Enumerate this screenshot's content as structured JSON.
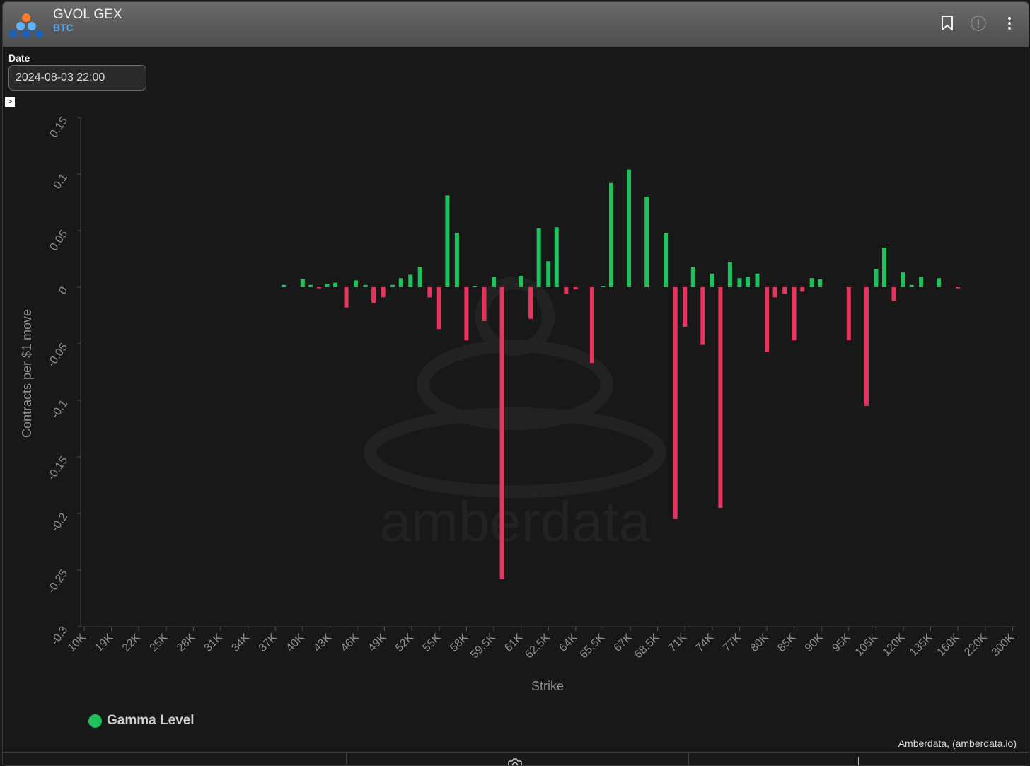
{
  "header": {
    "title": "GVOL GEX",
    "subtitle": "BTC"
  },
  "controls": {
    "date_label": "Date",
    "date_value": "2024-08-03 22:00",
    "expand_glyph": ">"
  },
  "legend": {
    "label": "Gamma Level",
    "color": "#1ec25c"
  },
  "credit": "Amberdata, (amberdata.io)",
  "watermark": "amberdata",
  "icons": [
    "bookmark-icon",
    "info-icon",
    "more-vertical-icon"
  ],
  "chart_data": {
    "type": "bar",
    "xlabel": "Strike",
    "ylabel": "Contracts per $1 move",
    "ylim": [
      -0.3,
      0.15
    ],
    "yticks": [
      0.15,
      0.1,
      0.05,
      0,
      -0.05,
      -0.1,
      -0.15,
      -0.2,
      -0.25,
      -0.3
    ],
    "ytick_labels": [
      "0.15",
      "0.1",
      "0.05",
      "0",
      "-0.05",
      "-0.1",
      "-0.15",
      "-0.2",
      "-0.25",
      "-0.3"
    ],
    "tick_labels": [
      "10K",
      "19K",
      "22K",
      "25K",
      "28K",
      "31K",
      "34K",
      "37K",
      "40K",
      "43K",
      "46K",
      "49K",
      "52K",
      "55K",
      "58K",
      "59.5K",
      "61K",
      "62.5K",
      "64K",
      "65.5K",
      "67K",
      "68.5K",
      "71K",
      "74K",
      "77K",
      "80K",
      "85K",
      "90K",
      "95K",
      "105K",
      "120K",
      "135K",
      "160K",
      "220K",
      "300K"
    ],
    "positive_color": "#1ec25c",
    "negative_color": "#e8335e",
    "bars": [
      {
        "tick": 7.3,
        "value": 0.002
      },
      {
        "tick": 8.0,
        "value": 0.007
      },
      {
        "tick": 8.3,
        "value": 0.002
      },
      {
        "tick": 8.6,
        "value": -0.001
      },
      {
        "tick": 8.9,
        "value": 0.003
      },
      {
        "tick": 9.2,
        "value": 0.004
      },
      {
        "tick": 9.6,
        "value": -0.018
      },
      {
        "tick": 9.95,
        "value": 0.006
      },
      {
        "tick": 10.3,
        "value": 0.002
      },
      {
        "tick": 10.6,
        "value": -0.014
      },
      {
        "tick": 10.95,
        "value": -0.009
      },
      {
        "tick": 11.3,
        "value": 0.002
      },
      {
        "tick": 11.6,
        "value": 0.008
      },
      {
        "tick": 11.95,
        "value": 0.011
      },
      {
        "tick": 12.3,
        "value": 0.018
      },
      {
        "tick": 12.65,
        "value": -0.009
      },
      {
        "tick": 13.0,
        "value": -0.037
      },
      {
        "tick": 13.3,
        "value": 0.081
      },
      {
        "tick": 13.65,
        "value": 0.048
      },
      {
        "tick": 14.0,
        "value": -0.047
      },
      {
        "tick": 14.3,
        "value": 0.001
      },
      {
        "tick": 14.65,
        "value": -0.03
      },
      {
        "tick": 15.0,
        "value": 0.009
      },
      {
        "tick": 15.3,
        "value": -0.258
      },
      {
        "tick": 16.0,
        "value": 0.01
      },
      {
        "tick": 16.35,
        "value": -0.028
      },
      {
        "tick": 16.65,
        "value": 0.052
      },
      {
        "tick": 17.0,
        "value": 0.023
      },
      {
        "tick": 17.3,
        "value": 0.053
      },
      {
        "tick": 17.65,
        "value": -0.006
      },
      {
        "tick": 18.0,
        "value": -0.002
      },
      {
        "tick": 18.6,
        "value": -0.067
      },
      {
        "tick": 19.0,
        "value": 0.001
      },
      {
        "tick": 19.3,
        "value": 0.092
      },
      {
        "tick": 19.95,
        "value": 0.104
      },
      {
        "tick": 20.6,
        "value": 0.08
      },
      {
        "tick": 21.3,
        "value": 0.048
      },
      {
        "tick": 21.65,
        "value": -0.205
      },
      {
        "tick": 22.0,
        "value": -0.035
      },
      {
        "tick": 22.3,
        "value": 0.018
      },
      {
        "tick": 22.65,
        "value": -0.051
      },
      {
        "tick": 23.0,
        "value": 0.012
      },
      {
        "tick": 23.3,
        "value": -0.195
      },
      {
        "tick": 23.65,
        "value": 0.022
      },
      {
        "tick": 24.0,
        "value": 0.008
      },
      {
        "tick": 24.3,
        "value": 0.009
      },
      {
        "tick": 24.65,
        "value": 0.012
      },
      {
        "tick": 25.0,
        "value": -0.057
      },
      {
        "tick": 25.3,
        "value": -0.009
      },
      {
        "tick": 25.65,
        "value": -0.006
      },
      {
        "tick": 26.0,
        "value": -0.047
      },
      {
        "tick": 26.3,
        "value": -0.004
      },
      {
        "tick": 26.65,
        "value": 0.008
      },
      {
        "tick": 26.95,
        "value": 0.007
      },
      {
        "tick": 28.0,
        "value": -0.047
      },
      {
        "tick": 28.65,
        "value": -0.105
      },
      {
        "tick": 29.0,
        "value": 0.016
      },
      {
        "tick": 29.3,
        "value": 0.035
      },
      {
        "tick": 29.65,
        "value": -0.012
      },
      {
        "tick": 30.0,
        "value": 0.013
      },
      {
        "tick": 30.3,
        "value": 0.002
      },
      {
        "tick": 30.65,
        "value": 0.009
      },
      {
        "tick": 31.3,
        "value": 0.008
      },
      {
        "tick": 32.0,
        "value": -0.001
      }
    ]
  }
}
